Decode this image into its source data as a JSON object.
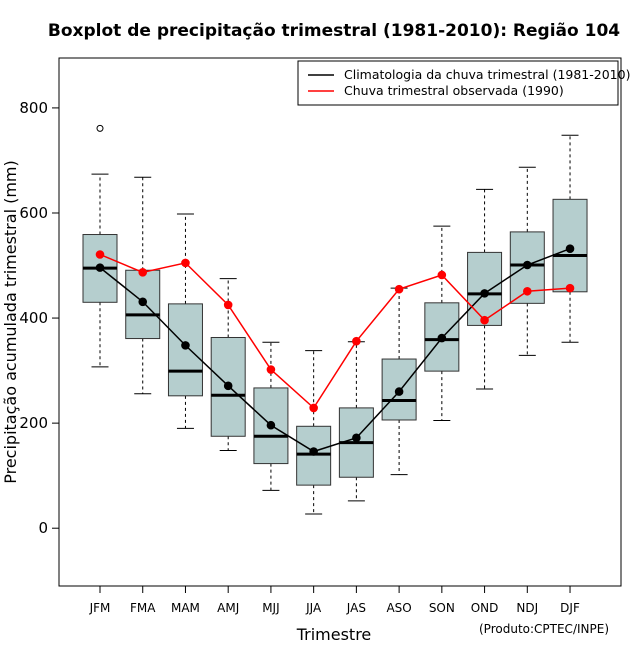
{
  "chart_data": {
    "type": "boxplot",
    "title": "Boxplot de precipitação trimestral (1981-2010): Região 104",
    "xlabel": "Trimestre",
    "ylabel": "Precipitação acumulada trimestral (mm)",
    "credit": "(Produto:CPTEC/INPE)",
    "ylim": [
      -110,
      895
    ],
    "yticks": [
      0,
      200,
      400,
      600,
      800
    ],
    "categories": [
      "JFM",
      "FMA",
      "MAM",
      "AMJ",
      "MJJ",
      "JJA",
      "JAS",
      "ASO",
      "SON",
      "OND",
      "NDJ",
      "DJF"
    ],
    "box_color": "#b5cece",
    "boxes": [
      {
        "min": 307,
        "q1": 430,
        "median": 495,
        "q3": 559,
        "max": 674,
        "outliers": [
          761
        ]
      },
      {
        "min": 256,
        "q1": 361,
        "median": 406,
        "q3": 491,
        "max": 668,
        "outliers": []
      },
      {
        "min": 190,
        "q1": 252,
        "median": 299,
        "q3": 427,
        "max": 598,
        "outliers": []
      },
      {
        "min": 148,
        "q1": 175,
        "median": 253,
        "q3": 363,
        "max": 475,
        "outliers": []
      },
      {
        "min": 72,
        "q1": 123,
        "median": 175,
        "q3": 267,
        "max": 354,
        "outliers": []
      },
      {
        "min": 27,
        "q1": 82,
        "median": 141,
        "q3": 194,
        "max": 338,
        "outliers": []
      },
      {
        "min": 52,
        "q1": 97,
        "median": 163,
        "q3": 229,
        "max": 355,
        "outliers": []
      },
      {
        "min": 102,
        "q1": 206,
        "median": 243,
        "q3": 322,
        "max": 457,
        "outliers": []
      },
      {
        "min": 205,
        "q1": 299,
        "median": 359,
        "q3": 429,
        "max": 575,
        "outliers": []
      },
      {
        "min": 265,
        "q1": 386,
        "median": 446,
        "q3": 525,
        "max": 645,
        "outliers": []
      },
      {
        "min": 329,
        "q1": 428,
        "median": 501,
        "q3": 564,
        "max": 687,
        "outliers": []
      },
      {
        "min": 354,
        "q1": 450,
        "median": 519,
        "q3": 626,
        "max": 748,
        "outliers": []
      }
    ],
    "series": [
      {
        "name": "Climatologia da chuva trimestral (1981-2010)",
        "color": "#000000",
        "values": [
          496,
          431,
          348,
          271,
          196,
          146,
          172,
          260,
          362,
          447,
          501,
          532
        ]
      },
      {
        "name": "Chuva trimestral observada (1990)",
        "color": "#ff0000",
        "values": [
          521,
          487,
          505,
          425,
          302,
          229,
          356,
          455,
          482,
          396,
          451,
          457
        ]
      }
    ],
    "legend_position": "top-right"
  }
}
